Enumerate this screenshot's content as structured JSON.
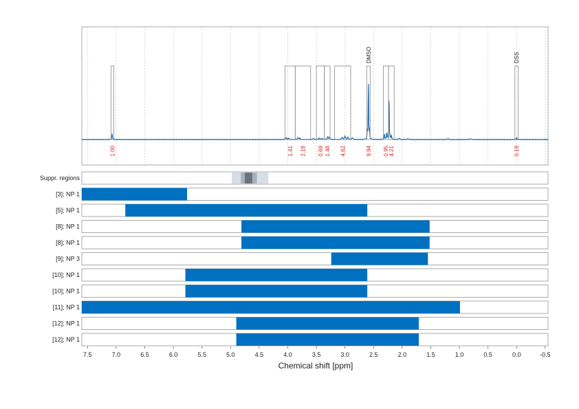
{
  "chart_data": {
    "type": "range",
    "xlabel": "Chemical shift [ppm]",
    "xlim": [
      7.6,
      -0.55
    ],
    "x_ticks": [
      "7.5",
      "7.0",
      "6.5",
      "6.0",
      "5.5",
      "5.0",
      "4.5",
      "4.0",
      "3.5",
      "3.0",
      "2.5",
      "2.0",
      "1.5",
      "1.0",
      "0.5",
      "0.0",
      "-0.5"
    ],
    "grid": true,
    "colors": {
      "spectrum": "#1f6fb0",
      "bar": "#0070c0",
      "integral": "#dd2222",
      "box": "#888888",
      "grid": "#cccccc"
    },
    "spectrum": {
      "peaks": [
        {
          "ppm": 7.07,
          "h": 0.08,
          "w": 0.006
        },
        {
          "ppm": 4.03,
          "h": 0.025,
          "w": 0.01
        },
        {
          "ppm": 3.99,
          "h": 0.02,
          "w": 0.01
        },
        {
          "ppm": 3.82,
          "h": 0.03,
          "w": 0.008
        },
        {
          "ppm": 3.79,
          "h": 0.02,
          "w": 0.008
        },
        {
          "ppm": 3.55,
          "h": 0.015,
          "w": 0.01
        },
        {
          "ppm": 3.45,
          "h": 0.02,
          "w": 0.01
        },
        {
          "ppm": 3.4,
          "h": 0.015,
          "w": 0.01
        },
        {
          "ppm": 3.3,
          "h": 0.04,
          "w": 0.008
        },
        {
          "ppm": 3.27,
          "h": 0.03,
          "w": 0.008
        },
        {
          "ppm": 3.05,
          "h": 0.03,
          "w": 0.01
        },
        {
          "ppm": 3.0,
          "h": 0.045,
          "w": 0.01
        },
        {
          "ppm": 2.95,
          "h": 0.03,
          "w": 0.01
        },
        {
          "ppm": 2.87,
          "h": 0.02,
          "w": 0.01
        },
        {
          "ppm": 2.59,
          "h": 0.97,
          "w": 0.004
        },
        {
          "ppm": 2.61,
          "h": 0.12,
          "w": 0.004
        },
        {
          "ppm": 2.57,
          "h": 0.12,
          "w": 0.004
        },
        {
          "ppm": 2.31,
          "h": 0.08,
          "w": 0.005
        },
        {
          "ppm": 2.27,
          "h": 0.1,
          "w": 0.005
        },
        {
          "ppm": 2.23,
          "h": 0.75,
          "w": 0.004
        },
        {
          "ppm": 2.19,
          "h": 0.06,
          "w": 0.005
        },
        {
          "ppm": 2.05,
          "h": 0.015,
          "w": 0.01
        },
        {
          "ppm": 1.9,
          "h": 0.01,
          "w": 0.01
        },
        {
          "ppm": 1.2,
          "h": 0.015,
          "w": 0.008
        },
        {
          "ppm": 0.8,
          "h": 0.01,
          "w": 0.01
        },
        {
          "ppm": 0.0,
          "h": 0.04,
          "w": 0.004
        }
      ]
    },
    "integral_regions": [
      {
        "from": 7.09,
        "to": 7.04,
        "label": "1.00"
      },
      {
        "from": 4.05,
        "to": 3.87,
        "label": "1.41"
      },
      {
        "from": 3.87,
        "to": 3.6,
        "label": "2.18"
      },
      {
        "from": 3.5,
        "to": 3.36,
        "label": "0.69"
      },
      {
        "from": 3.36,
        "to": 3.26,
        "label": "1.48"
      },
      {
        "from": 3.18,
        "to": 2.9,
        "label": "4.62"
      },
      {
        "from": 2.62,
        "to": 2.56,
        "label": "9.94",
        "annotation": "DMSO"
      },
      {
        "from": 2.33,
        "to": 2.24,
        "label": "0.95"
      },
      {
        "from": 2.24,
        "to": 2.14,
        "label": "4.21"
      },
      {
        "from": 0.03,
        "to": -0.03,
        "label": "0.19",
        "annotation": "DSS"
      }
    ],
    "suppressed_regions": {
      "label": "Suppr. regions",
      "bands": [
        {
          "from": 4.98,
          "to": 4.34,
          "level": 1
        },
        {
          "from": 4.82,
          "to": 4.54,
          "level": 2
        },
        {
          "from": 4.75,
          "to": 4.62,
          "level": 3
        }
      ]
    },
    "tracks": [
      {
        "label": "[3]; NP 1",
        "from": 7.6,
        "to": 5.76
      },
      {
        "label": "[5]; NP 1",
        "from": 6.84,
        "to": 2.61
      },
      {
        "label": "[8]; NP 1",
        "from": 4.81,
        "to": 1.52
      },
      {
        "label": "[8]; NP 1",
        "from": 4.81,
        "to": 1.52
      },
      {
        "label": "[9]; NP 3",
        "from": 3.24,
        "to": 1.55
      },
      {
        "label": "[10]; NP 1",
        "from": 5.79,
        "to": 2.61
      },
      {
        "label": "[10]; NP 1",
        "from": 5.79,
        "to": 2.61
      },
      {
        "label": "[11]; NP 1",
        "from": 7.6,
        "to": 0.99
      },
      {
        "label": "[12]; NP 1",
        "from": 4.9,
        "to": 1.71
      },
      {
        "label": "[12]; NP 1",
        "from": 4.9,
        "to": 1.71
      }
    ]
  }
}
